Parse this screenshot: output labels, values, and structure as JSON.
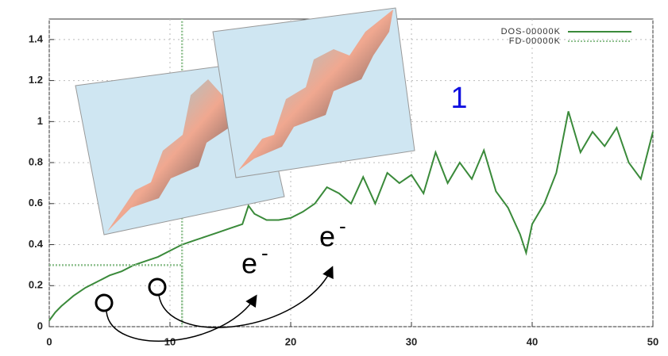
{
  "chart_data": {
    "type": "line",
    "xlim": [
      0,
      50
    ],
    "xticks": [
      0,
      10,
      20,
      30,
      40,
      50
    ],
    "ylim": [
      0,
      1.5
    ],
    "yticks": [
      0,
      0.2,
      0.4,
      0.6,
      0.8,
      1,
      1.2,
      1.4
    ],
    "grid": true,
    "legend": "top-right",
    "series": [
      {
        "name": "DOS-00000K",
        "color": "#3a8a3a",
        "style": "solid",
        "x": [
          0,
          0.5,
          1,
          2,
          3,
          4,
          5,
          6,
          7,
          8,
          9,
          10,
          11,
          12,
          13,
          14,
          15,
          16,
          16.5,
          17,
          18,
          19,
          20,
          21,
          22,
          23,
          24,
          25,
          26,
          27,
          28,
          29,
          30,
          31,
          32,
          33,
          34,
          35,
          36,
          37,
          38,
          39,
          39.5,
          40,
          41,
          42,
          43,
          44,
          45,
          46,
          47,
          48,
          49,
          50
        ],
        "values": [
          0.03,
          0.07,
          0.1,
          0.15,
          0.19,
          0.22,
          0.25,
          0.27,
          0.3,
          0.32,
          0.34,
          0.37,
          0.4,
          0.42,
          0.44,
          0.46,
          0.48,
          0.5,
          0.59,
          0.55,
          0.52,
          0.52,
          0.53,
          0.56,
          0.6,
          0.68,
          0.65,
          0.6,
          0.73,
          0.6,
          0.75,
          0.7,
          0.74,
          0.65,
          0.85,
          0.7,
          0.8,
          0.72,
          0.86,
          0.66,
          0.58,
          0.45,
          0.36,
          0.5,
          0.6,
          0.75,
          1.05,
          0.85,
          0.95,
          0.88,
          0.97,
          0.8,
          0.72,
          0.95
        ]
      },
      {
        "name": "FD-00000K",
        "color": "#8fc08f",
        "style": "dotted",
        "x": [
          0,
          11,
          11,
          11
        ],
        "values": [
          0.3,
          0.3,
          0,
          1.5
        ]
      }
    ],
    "annotations": [
      {
        "text": "1",
        "color": "#1010e0"
      },
      {
        "text": "e",
        "sup": "-",
        "color": "#000"
      },
      {
        "text": "e",
        "sup": "-",
        "color": "#000"
      }
    ]
  }
}
